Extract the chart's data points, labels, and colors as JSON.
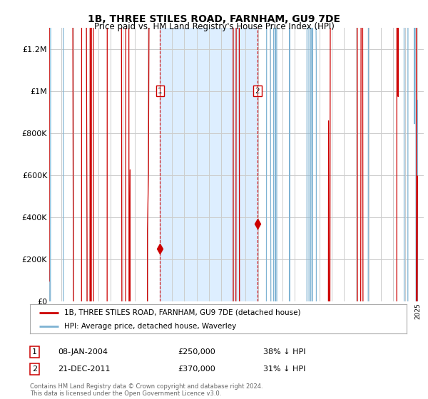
{
  "title": "1B, THREE STILES ROAD, FARNHAM, GU9 7DE",
  "subtitle": "Price paid vs. HM Land Registry's House Price Index (HPI)",
  "legend_line1": "1B, THREE STILES ROAD, FARNHAM, GU9 7DE (detached house)",
  "legend_line2": "HPI: Average price, detached house, Waverley",
  "annotation1_label": "1",
  "annotation1_date": "08-JAN-2004",
  "annotation1_price": "£250,000",
  "annotation1_hpi": "38% ↓ HPI",
  "annotation2_label": "2",
  "annotation2_date": "21-DEC-2011",
  "annotation2_price": "£370,000",
  "annotation2_hpi": "31% ↓ HPI",
  "footer": "Contains HM Land Registry data © Crown copyright and database right 2024.\nThis data is licensed under the Open Government Licence v3.0.",
  "hpi_color": "#7fb3d3",
  "price_color": "#cc0000",
  "marker_color": "#cc0000",
  "vline_color": "#cc0000",
  "shade_color": "#ddeeff",
  "grid_color": "#cccccc",
  "bg_color": "#ffffff",
  "ylim": [
    0,
    1300000
  ],
  "yticks": [
    0,
    200000,
    400000,
    600000,
    800000,
    1000000,
    1200000
  ],
  "ytick_labels": [
    "£0",
    "£200K",
    "£400K",
    "£600K",
    "£800K",
    "£1M",
    "£1.2M"
  ],
  "year_start": 1995,
  "year_end": 2025,
  "sale1_year": 2004.03,
  "sale1_value": 250000,
  "sale2_year": 2011.95,
  "sale2_value": 370000
}
